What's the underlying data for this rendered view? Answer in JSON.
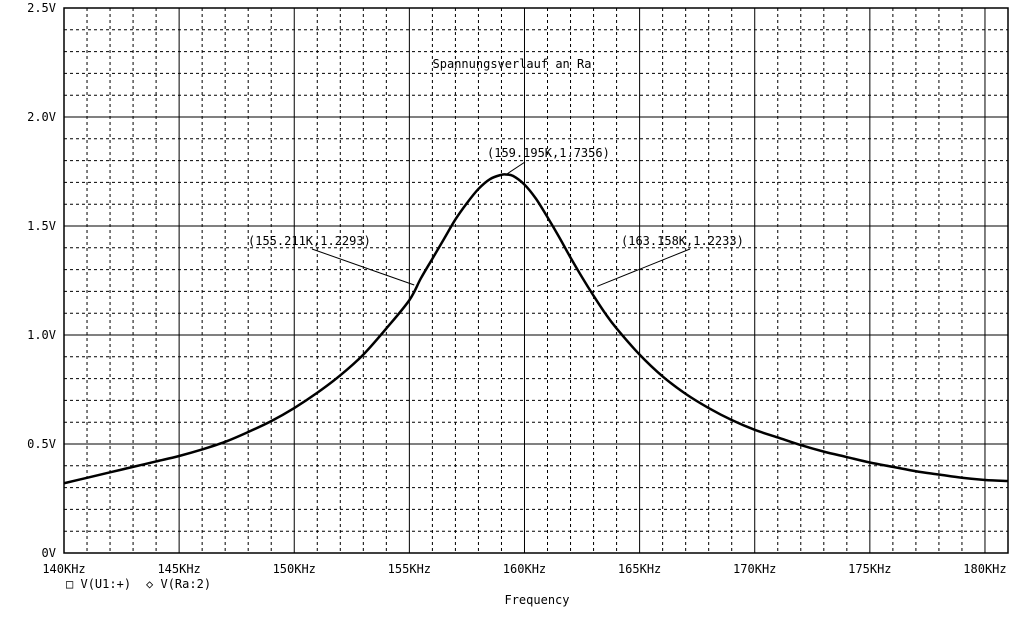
{
  "chart_data": {
    "type": "line",
    "title": "Spannungsverlauf an Ra",
    "xlabel": "Frequency",
    "ylabel": "",
    "xlim": [
      140,
      181
    ],
    "ylim": [
      0,
      2.5
    ],
    "grid": true,
    "x_ticks": [
      {
        "value": 140,
        "label": "140KHz"
      },
      {
        "value": 145,
        "label": "145KHz"
      },
      {
        "value": 150,
        "label": "150KHz"
      },
      {
        "value": 155,
        "label": "155KHz"
      },
      {
        "value": 160,
        "label": "160KHz"
      },
      {
        "value": 165,
        "label": "165KHz"
      },
      {
        "value": 170,
        "label": "170KHz"
      },
      {
        "value": 175,
        "label": "175KHz"
      },
      {
        "value": 180,
        "label": "180KHz"
      }
    ],
    "y_ticks": [
      {
        "value": 0,
        "label": "0V"
      },
      {
        "value": 0.5,
        "label": "0.5V"
      },
      {
        "value": 1.0,
        "label": "1.0V"
      },
      {
        "value": 1.5,
        "label": "1.5V"
      },
      {
        "value": 2.0,
        "label": "2.0V"
      },
      {
        "value": 2.5,
        "label": "2.5V"
      }
    ],
    "legend": {
      "placement": "bottom-left",
      "entries": [
        {
          "symbol": "□",
          "label": "V(U1:+)"
        },
        {
          "symbol": "◇",
          "label": "V(Ra:2)"
        }
      ]
    },
    "series": [
      {
        "x": [
          140,
          141,
          142,
          143,
          144,
          145,
          146,
          147,
          148,
          149,
          150,
          151,
          152,
          153,
          154,
          155,
          155.5,
          156,
          156.5,
          157,
          157.5,
          158,
          158.5,
          159,
          159.2,
          159.5,
          160,
          160.5,
          161,
          161.5,
          162,
          162.5,
          163,
          163.5,
          164,
          165,
          166,
          167,
          168,
          169,
          170,
          171,
          172,
          173,
          174,
          175,
          176,
          177,
          178,
          179,
          180,
          181
        ],
        "y": [
          0.32,
          0.345,
          0.37,
          0.395,
          0.42,
          0.445,
          0.475,
          0.51,
          0.555,
          0.605,
          0.665,
          0.735,
          0.815,
          0.91,
          1.03,
          1.16,
          1.26,
          1.35,
          1.44,
          1.53,
          1.605,
          1.67,
          1.715,
          1.735,
          1.736,
          1.73,
          1.69,
          1.625,
          1.54,
          1.45,
          1.355,
          1.265,
          1.18,
          1.1,
          1.03,
          0.91,
          0.81,
          0.73,
          0.665,
          0.61,
          0.565,
          0.53,
          0.495,
          0.465,
          0.44,
          0.415,
          0.395,
          0.375,
          0.36,
          0.345,
          0.335,
          0.33
        ]
      }
    ],
    "annotations": [
      {
        "text": "(159.195K,1.7356)",
        "x": 159.195,
        "y": 1.7356
      },
      {
        "text": "(155.211K,1.2293)",
        "x": 155.211,
        "y": 1.2293
      },
      {
        "text": "(163.158K,1.2233)",
        "x": 163.158,
        "y": 1.2233
      }
    ]
  }
}
